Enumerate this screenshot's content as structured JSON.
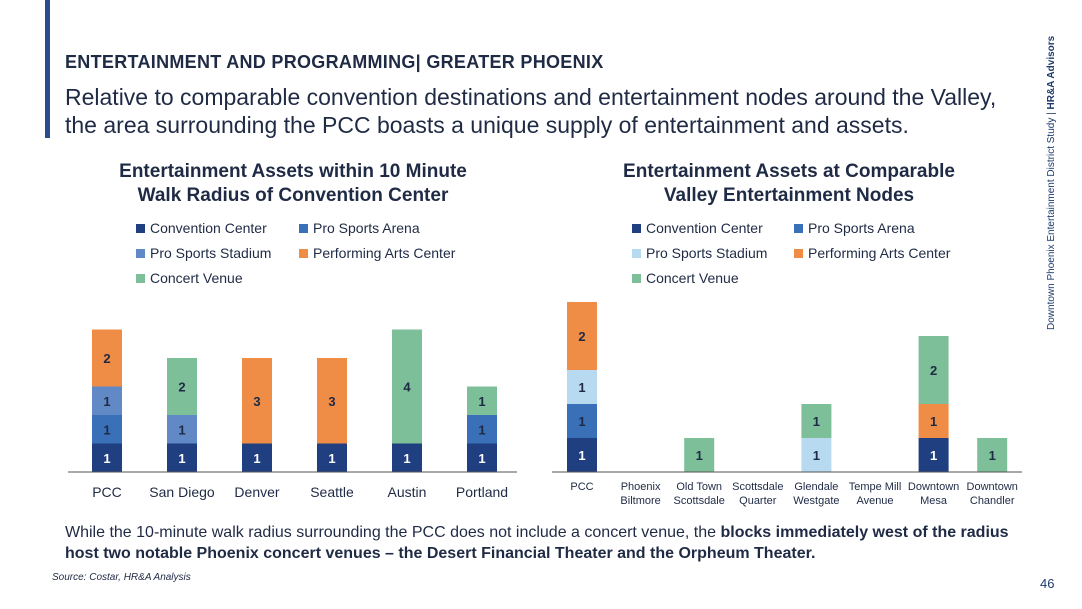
{
  "colors": {
    "accent": "#2b4c8c",
    "convention_center": "#1f3f80",
    "pro_sports_arena": "#3a70b8",
    "pro_sports_stadium_left": "#6189c6",
    "pro_sports_stadium_right": "#b8daf0",
    "performing_arts_center": "#ef8c45",
    "concert_venue": "#7dbf98",
    "axis": "#555555"
  },
  "header": {
    "eyebrow": "ENTERTAINMENT AND PROGRAMMING| GREATER PHOENIX",
    "headline": "Relative to comparable convention destinations and entertainment nodes around the Valley, the area surrounding the PCC boasts a unique supply of entertainment and assets."
  },
  "side": {
    "study": "Downtown Phoenix Entertainment District Study",
    "separator": "|",
    "firm": "HR&A Advisors"
  },
  "chart_data": [
    {
      "type": "bar",
      "stacked": true,
      "title": "Entertainment Assets within 10 Minute Walk Radius of Convention Center",
      "title_lines": [
        "Entertainment Assets within 10 Minute",
        "Walk Radius of Convention Center"
      ],
      "categories": [
        "PCC",
        "San Diego",
        "Denver",
        "Seattle",
        "Austin",
        "Portland"
      ],
      "series": [
        {
          "name": "Convention Center",
          "color": "#1f3f80",
          "values": [
            1,
            1,
            1,
            1,
            1,
            1
          ]
        },
        {
          "name": "Pro Sports Arena",
          "color": "#3a70b8",
          "values": [
            1,
            0,
            0,
            0,
            0,
            1
          ]
        },
        {
          "name": "Pro Sports Stadium",
          "color": "#6189c6",
          "values": [
            1,
            1,
            0,
            0,
            0,
            0
          ]
        },
        {
          "name": "Performing Arts Center",
          "color": "#ef8c45",
          "values": [
            2,
            0,
            3,
            3,
            0,
            0
          ]
        },
        {
          "name": "Concert Venue",
          "color": "#7dbf98",
          "values": [
            0,
            2,
            0,
            0,
            4,
            1
          ]
        }
      ],
      "ylim": [
        0,
        5
      ],
      "legend_position": "top",
      "grid": false
    },
    {
      "type": "bar",
      "stacked": true,
      "title": "Entertainment Assets at Comparable Valley Entertainment Nodes",
      "title_lines": [
        "Entertainment Assets at Comparable",
        "Valley Entertainment Nodes"
      ],
      "categories": [
        "PCC",
        "Phoenix Biltmore",
        "Old Town Scottsdale",
        "Scottsdale Quarter",
        "Glendale Westgate",
        "Tempe Mill Avenue",
        "Downtown Mesa",
        "Downtown Chandler"
      ],
      "category_lines": [
        [
          "PCC"
        ],
        [
          "Phoenix",
          "Biltmore"
        ],
        [
          "Old Town",
          "Scottsdale"
        ],
        [
          "Scottsdale",
          "Quarter"
        ],
        [
          "Glendale",
          "Westgate"
        ],
        [
          "Tempe Mill",
          "Avenue"
        ],
        [
          "Downtown",
          "Mesa"
        ],
        [
          "Downtown",
          "Chandler"
        ]
      ],
      "series": [
        {
          "name": "Convention Center",
          "color": "#1f3f80",
          "values": [
            1,
            0,
            0,
            0,
            0,
            0,
            1,
            0
          ]
        },
        {
          "name": "Pro Sports Arena",
          "color": "#3a70b8",
          "values": [
            1,
            0,
            0,
            0,
            0,
            0,
            0,
            0
          ]
        },
        {
          "name": "Pro Sports Stadium",
          "color": "#b8daf0",
          "values": [
            1,
            0,
            0,
            0,
            1,
            0,
            0,
            0
          ]
        },
        {
          "name": "Performing Arts Center",
          "color": "#ef8c45",
          "values": [
            2,
            0,
            0,
            0,
            0,
            0,
            1,
            0
          ]
        },
        {
          "name": "Concert Venue",
          "color": "#7dbf98",
          "values": [
            0,
            0,
            1,
            0,
            1,
            0,
            2,
            1
          ]
        }
      ],
      "ylim": [
        0,
        5
      ],
      "legend_position": "top",
      "grid": false
    }
  ],
  "footnote": {
    "text_plain": "While the 10-minute walk radius surrounding the PCC does not include a concert venue, the ",
    "text_bold": "blocks immediately west of the radius host two notable Phoenix concert venues – the Desert Financial Theater and the Orpheum Theater."
  },
  "source": "Source: Costar, HR&A Analysis",
  "page_number": "46"
}
